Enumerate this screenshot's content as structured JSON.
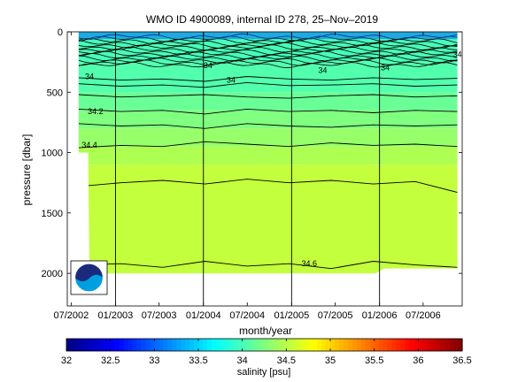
{
  "chart_data": {
    "type": "heatmap",
    "title": "WMO ID 4900089, internal ID 278, 25–Nov–2019",
    "xlabel": "month/year",
    "ylabel": "pressure [dbar]",
    "x_ticks": [
      "07/2002",
      "01/2003",
      "07/2003",
      "01/2004",
      "07/2004",
      "01/2005",
      "07/2005",
      "01/2006",
      "07/2006"
    ],
    "y_ticks": [
      0,
      500,
      1000,
      1500,
      2000
    ],
    "ylim": [
      2270,
      0
    ],
    "xlim": [
      "2002-06-15",
      "2006-12-10"
    ],
    "year_boundaries": [
      "2003-01-01",
      "2004-01-01",
      "2005-01-01",
      "2006-01-01"
    ],
    "colorbar": {
      "label": "salinity [psu]",
      "min": 32,
      "max": 36.5,
      "ticks": [
        "32",
        "32.5",
        "33",
        "33.5",
        "34",
        "34.5",
        "35",
        "35.5",
        "36",
        "36.5"
      ]
    },
    "data_extent": {
      "start": "2002-08-01",
      "end": "2006-11-20",
      "max_pressure": [
        {
          "date": "2002-08-01",
          "pressure": 1000
        },
        {
          "date": "2002-09-10",
          "pressure": 1000
        },
        {
          "date": "2002-09-15",
          "pressure": 2000
        },
        {
          "date": "2005-12-15",
          "pressure": 2000
        },
        {
          "date": "2006-01-20",
          "pressure": 1960
        },
        {
          "date": "2006-11-20",
          "pressure": 1960
        }
      ]
    },
    "salinity_layers": [
      {
        "top": 0,
        "salinity": 34.0
      },
      {
        "top": 250,
        "salinity": 34.05
      },
      {
        "top": 500,
        "salinity": 34.15
      },
      {
        "top": 650,
        "salinity": 34.25
      },
      {
        "top": 800,
        "salinity": 34.35
      },
      {
        "top": 950,
        "salinity": 34.45
      },
      {
        "top": 1100,
        "salinity": 34.55
      }
    ],
    "contours": [
      {
        "label": "34",
        "pressures": [
          380,
          400,
          390,
          410,
          370,
          390,
          400,
          380,
          395,
          385
        ]
      },
      {
        "label": "",
        "pressures": [
          430,
          450,
          440,
          460,
          420,
          445,
          440,
          430,
          450,
          440
        ]
      },
      {
        "label": "",
        "pressures": [
          520,
          540,
          530,
          520,
          540,
          550,
          530,
          520,
          540,
          530
        ]
      },
      {
        "label": "34.2",
        "pressures": [
          640,
          660,
          650,
          680,
          640,
          660,
          650,
          670,
          650,
          660
        ]
      },
      {
        "label": "",
        "pressures": [
          760,
          780,
          770,
          800,
          760,
          780,
          790,
          770,
          780,
          770
        ]
      },
      {
        "label": "34.4",
        "pressures": [
          960,
          940,
          950,
          910,
          930,
          950,
          920,
          940,
          930,
          950
        ]
      },
      {
        "label": "",
        "pressures": [
          1280,
          1250,
          1230,
          1260,
          1220,
          1250,
          1230,
          1260,
          1240,
          1330
        ]
      },
      {
        "label": "34.6",
        "pressures": [
          1930,
          1920,
          1950,
          1900,
          1940,
          1920,
          1960,
          1900,
          1930,
          1950
        ]
      }
    ],
    "contour_label_positions": [
      {
        "label": "34",
        "date": "2002-09-15",
        "pressure": 390
      },
      {
        "label": "34",
        "date": "2004-01-20",
        "pressure": 300
      },
      {
        "label": "34",
        "date": "2004-04-25",
        "pressure": 420
      },
      {
        "label": "34",
        "date": "2005-05-10",
        "pressure": 340
      },
      {
        "label": "34",
        "date": "2006-01-25",
        "pressure": 320
      },
      {
        "label": "34",
        "date": "2006-11-20",
        "pressure": 210
      },
      {
        "label": "34.2",
        "date": "2002-10-10",
        "pressure": 680
      },
      {
        "label": "34.4",
        "date": "2002-09-15",
        "pressure": 960
      },
      {
        "label": "34.6",
        "date": "2005-03-15",
        "pressure": 1940
      }
    ]
  }
}
